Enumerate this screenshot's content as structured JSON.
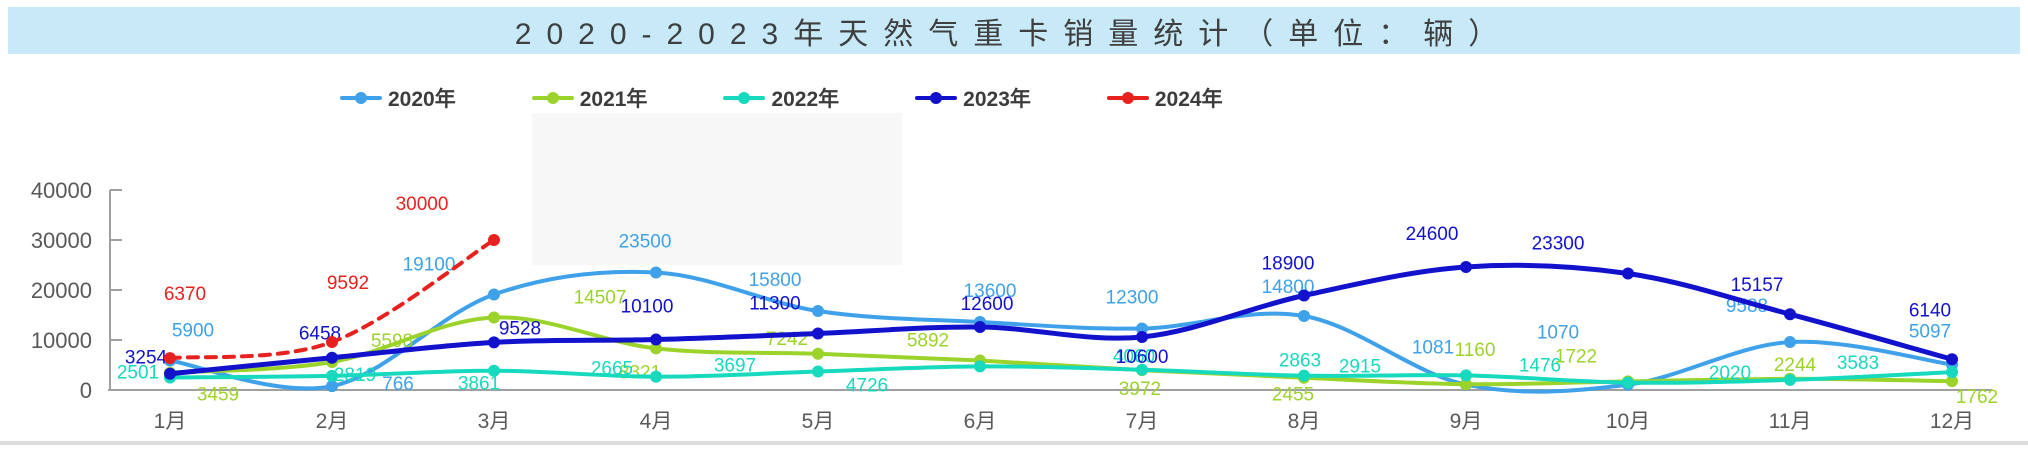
{
  "title": {
    "text": "2020-2023年天然气重卡销量统计（单位：辆）"
  },
  "chart_data": {
    "type": "line",
    "title": "2020-2023年天然气重卡销量统计（单位：辆）",
    "categories": [
      "1月",
      "2月",
      "3月",
      "4月",
      "5月",
      "6月",
      "7月",
      "8月",
      "9月",
      "10月",
      "11月",
      "12月"
    ],
    "series": [
      {
        "name": "2020年",
        "color": "#3EA1E9",
        "style": "solid",
        "values": [
          5900,
          766,
          19100,
          23500,
          15800,
          13600,
          12300,
          14800,
          1081,
          1070,
          9588,
          5097
        ]
      },
      {
        "name": "2021年",
        "color": "#9CD32B",
        "style": "solid",
        "values": [
          3459,
          5598,
          14507,
          8321,
          7242,
          5892,
          3972,
          2455,
          1160,
          1722,
          2244,
          1762
        ]
      },
      {
        "name": "2022年",
        "color": "#16D9BE",
        "style": "solid",
        "values": [
          2501,
          2819,
          3861,
          2665,
          3697,
          4726,
          4060,
          2863,
          2915,
          1476,
          2020,
          3583
        ]
      },
      {
        "name": "2023年",
        "color": "#1212CC",
        "style": "solid",
        "values": [
          3254,
          6458,
          9528,
          10100,
          11300,
          12600,
          10600,
          18900,
          24600,
          23300,
          15157,
          6140
        ]
      },
      {
        "name": "2024年",
        "color": "#E7221E",
        "style": "dashed",
        "values": [
          6370,
          9592,
          30000,
          null,
          null,
          null,
          null,
          null,
          null,
          null,
          null,
          null
        ]
      }
    ],
    "xlabel": "",
    "ylabel": "",
    "ylim": [
      0,
      40000
    ],
    "yticks": [
      0,
      10000,
      20000,
      30000,
      40000
    ],
    "grid": false,
    "legend_position": "top",
    "marker": "circle",
    "data_labels": true
  },
  "axis_style": {
    "tick_color": "#595959",
    "line_color": "#A0A0A0"
  }
}
